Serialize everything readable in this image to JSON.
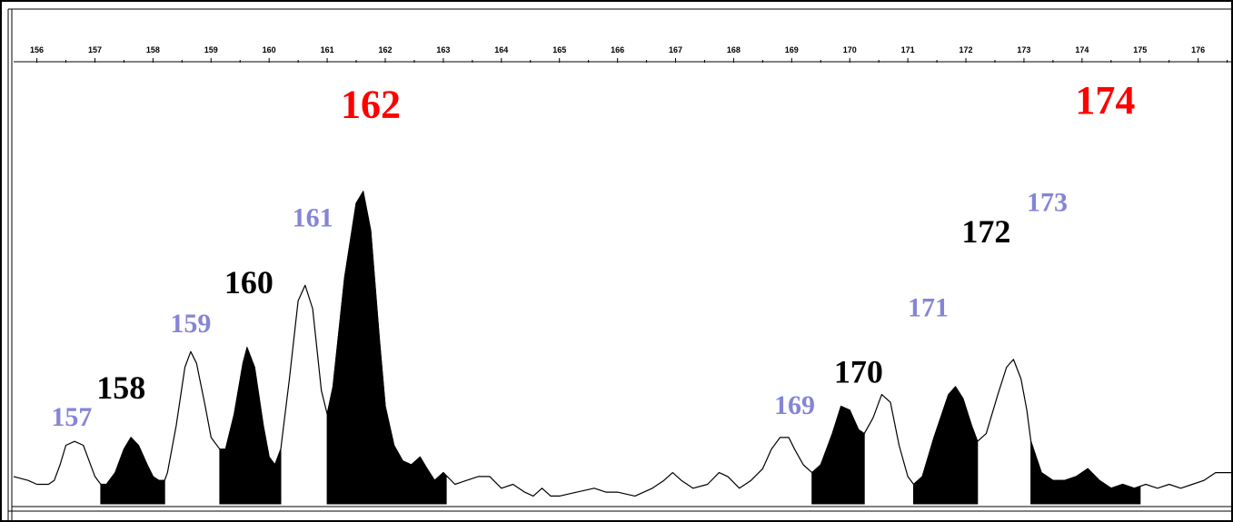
{
  "chart_data": {
    "type": "area",
    "xlim": [
      155.6,
      176.6
    ],
    "ylim": [
      0,
      1
    ],
    "x_ticks": [
      "156",
      "157",
      "158",
      "159",
      "160",
      "161",
      "162",
      "163",
      "164",
      "165",
      "166",
      "167",
      "168",
      "169",
      "170",
      "171",
      "172",
      "173",
      "174",
      "175",
      "176"
    ],
    "trace": [
      [
        155.6,
        0.07
      ],
      [
        155.85,
        0.06
      ],
      [
        156.0,
        0.05
      ],
      [
        156.2,
        0.05
      ],
      [
        156.3,
        0.06
      ],
      [
        156.4,
        0.1
      ],
      [
        156.5,
        0.15
      ],
      [
        156.65,
        0.16
      ],
      [
        156.8,
        0.15
      ],
      [
        156.9,
        0.11
      ],
      [
        157.0,
        0.07
      ],
      [
        157.1,
        0.05
      ],
      [
        157.2,
        0.05
      ],
      [
        157.35,
        0.08
      ],
      [
        157.5,
        0.14
      ],
      [
        157.62,
        0.17
      ],
      [
        157.75,
        0.15
      ],
      [
        157.9,
        0.1
      ],
      [
        158.0,
        0.07
      ],
      [
        158.1,
        0.06
      ],
      [
        158.2,
        0.06
      ],
      [
        158.25,
        0.08
      ],
      [
        158.4,
        0.2
      ],
      [
        158.55,
        0.35
      ],
      [
        158.65,
        0.39
      ],
      [
        158.75,
        0.36
      ],
      [
        158.9,
        0.25
      ],
      [
        159.0,
        0.17
      ],
      [
        159.15,
        0.14
      ],
      [
        159.25,
        0.14
      ],
      [
        159.4,
        0.23
      ],
      [
        159.55,
        0.36
      ],
      [
        159.62,
        0.4
      ],
      [
        159.75,
        0.35
      ],
      [
        159.9,
        0.2
      ],
      [
        160.0,
        0.12
      ],
      [
        160.1,
        0.1
      ],
      [
        160.2,
        0.14
      ],
      [
        160.35,
        0.32
      ],
      [
        160.5,
        0.52
      ],
      [
        160.62,
        0.56
      ],
      [
        160.75,
        0.5
      ],
      [
        160.9,
        0.29
      ],
      [
        161.0,
        0.23
      ],
      [
        161.1,
        0.3
      ],
      [
        161.3,
        0.58
      ],
      [
        161.5,
        0.77
      ],
      [
        161.62,
        0.8
      ],
      [
        161.75,
        0.7
      ],
      [
        161.9,
        0.42
      ],
      [
        162.0,
        0.25
      ],
      [
        162.15,
        0.15
      ],
      [
        162.3,
        0.11
      ],
      [
        162.45,
        0.1
      ],
      [
        162.6,
        0.12
      ],
      [
        162.72,
        0.09
      ],
      [
        162.85,
        0.06
      ],
      [
        163.0,
        0.08
      ],
      [
        163.2,
        0.05
      ],
      [
        163.4,
        0.06
      ],
      [
        163.6,
        0.07
      ],
      [
        163.8,
        0.07
      ],
      [
        164.0,
        0.04
      ],
      [
        164.2,
        0.05
      ],
      [
        164.4,
        0.03
      ],
      [
        164.55,
        0.02
      ],
      [
        164.7,
        0.04
      ],
      [
        164.85,
        0.02
      ],
      [
        165.0,
        0.02
      ],
      [
        165.3,
        0.03
      ],
      [
        165.6,
        0.04
      ],
      [
        165.8,
        0.03
      ],
      [
        166.0,
        0.03
      ],
      [
        166.3,
        0.02
      ],
      [
        166.6,
        0.04
      ],
      [
        166.8,
        0.06
      ],
      [
        166.95,
        0.08
      ],
      [
        167.1,
        0.06
      ],
      [
        167.3,
        0.04
      ],
      [
        167.55,
        0.05
      ],
      [
        167.75,
        0.08
      ],
      [
        167.9,
        0.07
      ],
      [
        168.1,
        0.04
      ],
      [
        168.3,
        0.06
      ],
      [
        168.5,
        0.09
      ],
      [
        168.65,
        0.14
      ],
      [
        168.8,
        0.17
      ],
      [
        168.95,
        0.17
      ],
      [
        169.05,
        0.14
      ],
      [
        169.2,
        0.1
      ],
      [
        169.35,
        0.08
      ],
      [
        169.5,
        0.1
      ],
      [
        169.7,
        0.18
      ],
      [
        169.85,
        0.25
      ],
      [
        170.0,
        0.24
      ],
      [
        170.15,
        0.19
      ],
      [
        170.25,
        0.18
      ],
      [
        170.4,
        0.22
      ],
      [
        170.55,
        0.28
      ],
      [
        170.7,
        0.26
      ],
      [
        170.85,
        0.15
      ],
      [
        171.0,
        0.07
      ],
      [
        171.1,
        0.05
      ],
      [
        171.25,
        0.07
      ],
      [
        171.45,
        0.17
      ],
      [
        171.7,
        0.28
      ],
      [
        171.82,
        0.3
      ],
      [
        171.95,
        0.27
      ],
      [
        172.1,
        0.2
      ],
      [
        172.2,
        0.16
      ],
      [
        172.35,
        0.18
      ],
      [
        172.55,
        0.28
      ],
      [
        172.7,
        0.35
      ],
      [
        172.82,
        0.37
      ],
      [
        172.95,
        0.32
      ],
      [
        173.05,
        0.24
      ],
      [
        173.12,
        0.16
      ],
      [
        173.3,
        0.08
      ],
      [
        173.5,
        0.06
      ],
      [
        173.7,
        0.06
      ],
      [
        173.9,
        0.07
      ],
      [
        174.1,
        0.09
      ],
      [
        174.3,
        0.06
      ],
      [
        174.5,
        0.04
      ],
      [
        174.7,
        0.05
      ],
      [
        174.9,
        0.04
      ],
      [
        175.1,
        0.05
      ],
      [
        175.3,
        0.04
      ],
      [
        175.5,
        0.05
      ],
      [
        175.7,
        0.04
      ],
      [
        175.9,
        0.05
      ],
      [
        176.1,
        0.06
      ],
      [
        176.3,
        0.08
      ],
      [
        176.6,
        0.08
      ]
    ],
    "filled_ranges": [
      [
        157.1,
        158.2
      ],
      [
        159.15,
        160.2
      ],
      [
        161.0,
        163.05
      ],
      [
        169.35,
        170.25
      ],
      [
        171.1,
        172.2
      ],
      [
        173.12,
        175.0
      ]
    ],
    "peak_labels": [
      {
        "label": "157",
        "x": 156.6,
        "y": 0.2,
        "color": "#8585d6",
        "size": "small"
      },
      {
        "label": "158",
        "x": 157.45,
        "y": 0.27,
        "color": "#000000",
        "size": "large"
      },
      {
        "label": "159",
        "x": 158.65,
        "y": 0.44,
        "color": "#8585d6",
        "size": "small"
      },
      {
        "label": "160",
        "x": 159.65,
        "y": 0.54,
        "color": "#000000",
        "size": "large"
      },
      {
        "label": "161",
        "x": 160.75,
        "y": 0.71,
        "color": "#8585d6",
        "size": "small"
      },
      {
        "label": "162",
        "x": 161.75,
        "y": 0.99,
        "color": "#ff0000",
        "size": "xlarge"
      },
      {
        "label": "169",
        "x": 169.05,
        "y": 0.23,
        "color": "#8585d6",
        "size": "small"
      },
      {
        "label": "170",
        "x": 170.15,
        "y": 0.31,
        "color": "#000000",
        "size": "large"
      },
      {
        "label": "171",
        "x": 171.35,
        "y": 0.48,
        "color": "#8585d6",
        "size": "small"
      },
      {
        "label": "172",
        "x": 172.35,
        "y": 0.67,
        "color": "#000000",
        "size": "large"
      },
      {
        "label": "173",
        "x": 173.4,
        "y": 0.75,
        "color": "#8585d6",
        "size": "small"
      },
      {
        "label": "174",
        "x": 174.4,
        "y": 1.0,
        "color": "#ff0000",
        "size": "xlarge"
      }
    ]
  }
}
